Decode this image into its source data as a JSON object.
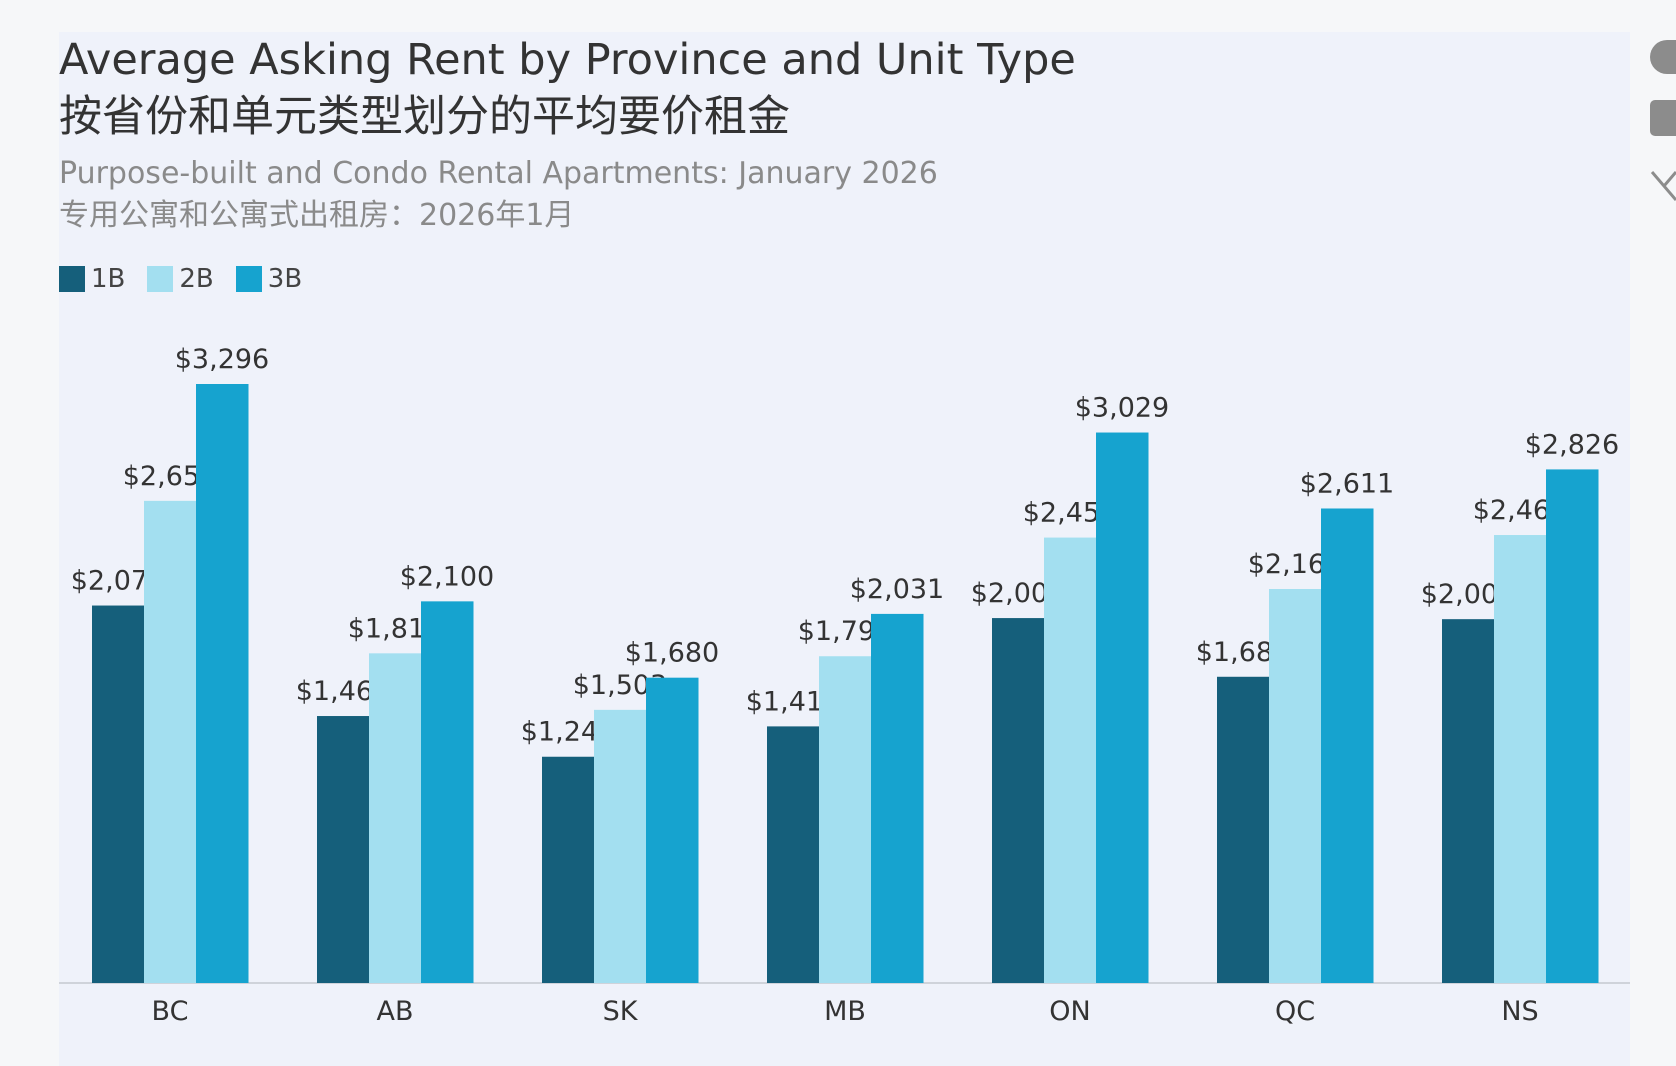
{
  "colors": {
    "1B": "#155f7b",
    "2B": "#a3dff0",
    "3B": "#16a3cf",
    "axis": "#cfd3da",
    "label": "#333333"
  },
  "icons": [
    "facebook-icon",
    "linkedin-icon",
    "x-icon"
  ],
  "chart_data": {
    "type": "bar",
    "title": "Average Asking Rent by Province and Unit Type",
    "title_zh": "按省份和单元类型划分的平均要价租金",
    "subtitle": "Purpose-built and Condo Rental Apartments: January 2026",
    "subtitle_zh": "专用公寓和公寓式出租房：2026年1月",
    "categories": [
      "BC",
      "AB",
      "SK",
      "MB",
      "ON",
      "QC",
      "NS"
    ],
    "series": [
      {
        "name": "1B",
        "values": [
          2077,
          1469,
          1245,
          1412,
          2008,
          1685,
          2002
        ],
        "labels": [
          "$2,077",
          "$1,469",
          "$1,245",
          "$1,412",
          "$2,008",
          "$1,685",
          "$2,002"
        ]
      },
      {
        "name": "2B",
        "values": [
          2653,
          1814,
          1503,
          1798,
          2451,
          2168,
          2465
        ],
        "labels": [
          "$2,653",
          "$1,814",
          "$1,503",
          "$1,798",
          "$2,451",
          "$2,168",
          "$2,465"
        ]
      },
      {
        "name": "3B",
        "values": [
          3296,
          2100,
          1680,
          2031,
          3029,
          2611,
          2826
        ],
        "labels": [
          "$3,296",
          "$2,100",
          "$1,680",
          "$2,031",
          "$3,029",
          "$2,611",
          "$2,826"
        ]
      }
    ],
    "ylim": [
      0,
      3600
    ],
    "grid": false,
    "legend_position": "top-left"
  }
}
